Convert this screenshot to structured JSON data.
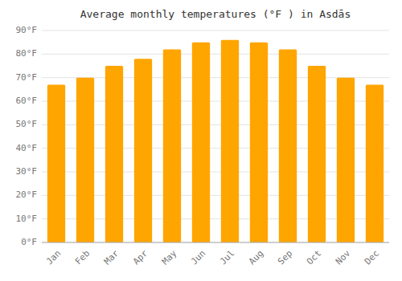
{
  "chart_data": {
    "type": "bar",
    "title": "Average monthly temperatures (°F ) in Asdās",
    "categories": [
      "Jan",
      "Feb",
      "Mar",
      "Apr",
      "May",
      "Jun",
      "Jul",
      "Aug",
      "Sep",
      "Oct",
      "Nov",
      "Dec"
    ],
    "values": [
      67,
      70,
      75,
      78,
      82,
      85,
      86,
      85,
      82,
      75,
      70,
      67
    ],
    "color": "#FFA500",
    "ylim": [
      0,
      90
    ],
    "yticks": [
      {
        "value": 0,
        "label": "0°F"
      },
      {
        "value": 10,
        "label": "10°F"
      },
      {
        "value": 20,
        "label": "20°F"
      },
      {
        "value": 30,
        "label": "30°F"
      },
      {
        "value": 40,
        "label": "40°F"
      },
      {
        "value": 50,
        "label": "50°F"
      },
      {
        "value": 60,
        "label": "60°F"
      },
      {
        "value": 70,
        "label": "70°F"
      },
      {
        "value": 80,
        "label": "80°F"
      },
      {
        "value": 90,
        "label": "90°F"
      }
    ],
    "grid": true
  }
}
